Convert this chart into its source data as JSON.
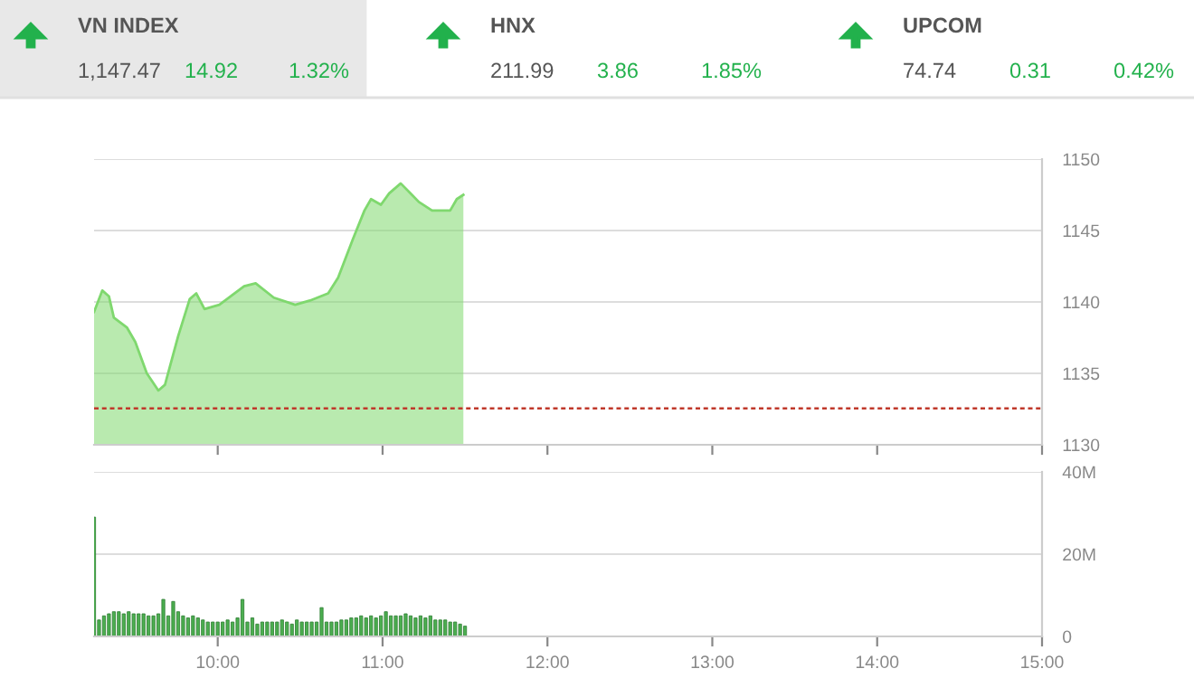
{
  "chart_data": [
    {
      "type": "other",
      "categories": [
        "VN INDEX",
        "HNX",
        "UPCOM"
      ],
      "value_labels": [
        "1,147.47",
        "211.99",
        "74.74"
      ],
      "annotations": [
        "14.92",
        "1.32%",
        "3.86",
        "1.85%",
        "0.31",
        "0.42%"
      ],
      "color": "#22b14c"
    },
    {
      "type": "area",
      "color": "#7fd86e",
      "x": [
        9.25,
        9.3,
        9.34,
        9.37,
        9.45,
        9.5,
        9.57,
        9.64,
        9.68,
        9.76,
        9.83,
        9.87,
        9.92,
        10.01,
        10.16,
        10.23,
        10.34,
        10.47,
        10.56,
        10.67,
        10.73,
        10.82,
        10.89,
        10.93,
        10.99,
        11.04,
        11.11,
        11.17,
        11.22,
        11.3,
        11.41,
        11.45,
        11.49
      ],
      "values": [
        1139.3,
        1140.8,
        1140.4,
        1138.9,
        1138.2,
        1137.2,
        1135.0,
        1133.8,
        1134.2,
        1137.6,
        1140.2,
        1140.6,
        1139.5,
        1139.8,
        1141.1,
        1141.3,
        1140.3,
        1139.8,
        1140.1,
        1140.6,
        1141.7,
        1144.4,
        1146.4,
        1147.2,
        1146.8,
        1147.6,
        1148.3,
        1147.6,
        1147.0,
        1146.4,
        1146.4,
        1147.2,
        1147.5
      ],
      "xlim": [
        9.25,
        15
      ],
      "xticks": [
        {
          "value": 10,
          "label": null
        },
        {
          "value": 11,
          "label": null
        },
        {
          "value": 12,
          "label": null
        },
        {
          "value": 13,
          "label": null
        },
        {
          "value": 14,
          "label": null
        },
        {
          "value": 15,
          "label": null
        }
      ],
      "ylim": [
        1130,
        1150
      ],
      "yticks": [
        1130,
        1135,
        1140,
        1145,
        1150
      ],
      "tick_labels": "y",
      "grid": "y",
      "ref_lines": [
        {
          "axis": "y",
          "value": 1132.55,
          "color": "#c0392b",
          "line_style": "dashed"
        }
      ]
    },
    {
      "type": "bar",
      "color": "#4caf50",
      "x": [
        9.25,
        9.28,
        9.31,
        9.34,
        9.37,
        9.4,
        9.43,
        9.46,
        9.49,
        9.52,
        9.55,
        9.58,
        9.61,
        9.64,
        9.67,
        9.7,
        9.73,
        9.76,
        9.79,
        9.82,
        9.85,
        9.88,
        9.91,
        9.94,
        9.97,
        10.0,
        10.03,
        10.06,
        10.09,
        10.12,
        10.15,
        10.18,
        10.21,
        10.24,
        10.27,
        10.3,
        10.33,
        10.36,
        10.39,
        10.42,
        10.45,
        10.48,
        10.51,
        10.54,
        10.57,
        10.6,
        10.63,
        10.66,
        10.69,
        10.72,
        10.75,
        10.78,
        10.81,
        10.84,
        10.87,
        10.9,
        10.93,
        10.96,
        10.99,
        11.02,
        11.05,
        11.08,
        11.11,
        11.14,
        11.17,
        11.2,
        11.23,
        11.26,
        11.29,
        11.32,
        11.35,
        11.38,
        11.41,
        11.44,
        11.47,
        11.5
      ],
      "values": [
        29,
        4,
        5,
        5.5,
        6,
        6,
        5.5,
        6,
        5.5,
        5.5,
        5.5,
        5,
        5,
        5.5,
        9,
        5,
        8.5,
        6,
        5,
        4.5,
        5,
        4.5,
        4,
        3.5,
        3.5,
        3.5,
        3.5,
        4,
        3.5,
        4.5,
        9,
        3.5,
        4.5,
        3,
        3.5,
        3.5,
        3.5,
        3.5,
        4,
        3.5,
        3,
        4,
        3.5,
        3.5,
        3.5,
        3.5,
        7,
        3.5,
        3.5,
        3.5,
        4,
        4,
        4.5,
        4.5,
        5,
        4.5,
        5,
        4.5,
        5,
        6,
        5,
        5,
        5,
        5.5,
        5,
        4.5,
        5,
        4.5,
        5,
        4,
        4,
        4,
        3.5,
        3.5,
        3,
        2.5
      ],
      "xlim": [
        9.25,
        15
      ],
      "xticks": [
        {
          "value": 10,
          "label": "10:00"
        },
        {
          "value": 11,
          "label": "11:00"
        },
        {
          "value": 12,
          "label": "12:00"
        },
        {
          "value": 13,
          "label": "13:00"
        },
        {
          "value": 14,
          "label": "14:00"
        },
        {
          "value": 15,
          "label": "15:00"
        }
      ],
      "ylim": [
        0,
        40
      ],
      "yticks": [
        0,
        {
          "value": 20,
          "label": "20M"
        },
        {
          "value": 40,
          "label": "40M"
        }
      ],
      "grid": "y"
    }
  ]
}
